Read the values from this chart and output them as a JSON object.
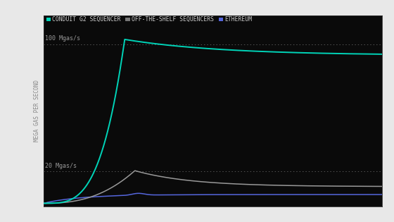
{
  "outer_bg": "#e8e8e8",
  "chart_bg": "#0a0a0a",
  "plot_bg": "#0a0a0a",
  "ylabel": "MEGA GAS PER SECOND",
  "ylabel_color": "#888888",
  "ylabel_fontsize": 5.5,
  "xmin": 0,
  "xmax": 100,
  "ymin": -2,
  "ymax": 118,
  "hline_100_y": 100,
  "hline_20_y": 20,
  "hline_100_label": "100 Mgas/s",
  "hline_20_label": "20 Mgas/s",
  "hline_color": "#555555",
  "hline_label_color": "#999999",
  "hline_label_fontsize": 6.0,
  "series": [
    {
      "name": "CONDUIT G2 SEQUENCER",
      "color": "#00d4b8",
      "legend_color": "#00d4b8",
      "lw": 1.4
    },
    {
      "name": "OFF-THE-SHELF SEQUENCERS",
      "color": "#999999",
      "legend_color": "#777777",
      "lw": 1.1
    },
    {
      "name": "ETHEREUM",
      "color": "#5566dd",
      "legend_color": "#5566dd",
      "lw": 1.1
    }
  ],
  "legend_fontsize": 5.8,
  "legend_text_color": "#cccccc",
  "spine_color": "#2a2a2a"
}
